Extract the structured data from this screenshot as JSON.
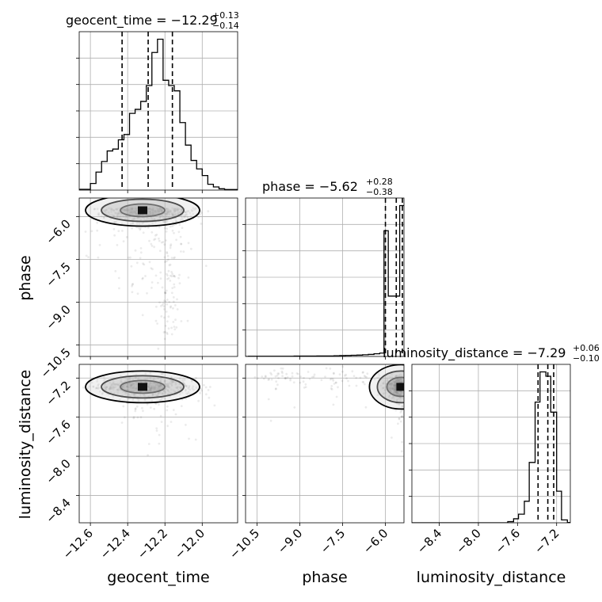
{
  "chart_data": {
    "type": "corner",
    "parameters": [
      "geocent_time",
      "phase",
      "luminosity_distance"
    ],
    "axis_labels": [
      "geocent_time",
      "phase",
      "luminosity_distance"
    ],
    "ranges": {
      "geocent_time": [
        -12.66,
        -11.81
      ],
      "phase": [
        -10.9,
        -5.35
      ],
      "luminosity_distance": [
        -8.68,
        -7.06
      ]
    },
    "ticks": {
      "geocent_time": [
        {
          "v": -12.6,
          "label": "−12.6"
        },
        {
          "v": -12.4,
          "label": "−12.4"
        },
        {
          "v": -12.2,
          "label": "−12.2"
        },
        {
          "v": -12.0,
          "label": "−12.0"
        }
      ],
      "phase": [
        {
          "v": -10.5,
          "label": "−10.5"
        },
        {
          "v": -9.0,
          "label": "−9.0"
        },
        {
          "v": -7.5,
          "label": "−7.5"
        },
        {
          "v": -6.0,
          "label": "−6.0"
        }
      ],
      "luminosity_distance": [
        {
          "v": -8.4,
          "label": "−8.4"
        },
        {
          "v": -8.0,
          "label": "−8.0"
        },
        {
          "v": -7.6,
          "label": "−7.6"
        },
        {
          "v": -7.2,
          "label": "−7.2"
        }
      ]
    },
    "titles": [
      {
        "text": "geocent_time = −12.29",
        "sup": "+0.13",
        "sub": "−0.14"
      },
      {
        "text": "phase = −5.62",
        "sup": "+0.28",
        "sub": "−0.38"
      },
      {
        "text": "luminosity_distance = −7.29",
        "sup": "+0.06",
        "sub": "−0.10"
      }
    ],
    "quantiles": {
      "geocent_time": [
        -12.43,
        -12.29,
        -12.16
      ],
      "phase": [
        -6.0,
        -5.62,
        -5.34
      ],
      "luminosity_distance": [
        -7.39,
        -7.29,
        -7.23
      ]
    },
    "histograms": {
      "geocent_time": {
        "bin_edges": [
          -12.66,
          -12.6,
          -12.57,
          -12.54,
          -12.51,
          -12.48,
          -12.45,
          -12.42,
          -12.39,
          -12.36,
          -12.33,
          -12.3,
          -12.27,
          -12.24,
          -12.21,
          -12.18,
          -12.15,
          -12.12,
          -12.09,
          -12.06,
          -12.03,
          -12.0,
          -11.97,
          -11.94,
          -11.91,
          -11.88,
          -11.81
        ],
        "counts": [
          3,
          25,
          68,
          108,
          148,
          155,
          190,
          210,
          290,
          305,
          335,
          395,
          520,
          570,
          415,
          395,
          375,
          255,
          170,
          112,
          80,
          55,
          22,
          12,
          5,
          2
        ]
      },
      "phase": {
        "bin_edges": [
          -10.9,
          -10.8,
          -10.6,
          -10.4,
          -10.2,
          -10.0,
          -9.8,
          -9.6,
          -9.4,
          -9.2,
          -9.0,
          -8.8,
          -8.6,
          -8.4,
          -8.2,
          -8.0,
          -7.8,
          -7.6,
          -7.4,
          -7.2,
          -7.0,
          -6.8,
          -6.6,
          -6.4,
          -6.2,
          -6.05,
          -5.9,
          -5.65,
          -5.5,
          -5.35
        ],
        "counts": [
          0,
          1,
          1,
          1,
          1,
          1,
          1,
          1,
          1,
          2,
          2,
          2,
          2,
          3,
          3,
          3,
          4,
          5,
          6,
          7,
          8,
          10,
          12,
          16,
          20,
          750,
          360,
          360,
          900
        ]
      },
      "luminosity_distance": {
        "bin_edges": [
          -8.68,
          -8.4,
          -8.0,
          -7.7,
          -7.64,
          -7.59,
          -7.53,
          -7.48,
          -7.42,
          -7.37,
          -7.31,
          -7.26,
          -7.2,
          -7.15,
          -7.09,
          -7.06
        ],
        "counts": [
          0,
          0,
          0,
          8,
          28,
          60,
          150,
          420,
          840,
          1050,
          1020,
          770,
          220,
          20,
          2
        ]
      }
    },
    "density_cores": [
      {
        "x": "geocent_time",
        "y": "phase",
        "x_value": -12.32,
        "y_value": -5.78
      },
      {
        "x": "geocent_time",
        "y": "luminosity_distance",
        "x_value": -12.32,
        "y_value": -7.29
      },
      {
        "x": "phase",
        "y": "luminosity_distance",
        "x_value": -5.45,
        "y_value": -7.29
      }
    ],
    "grid": true
  }
}
